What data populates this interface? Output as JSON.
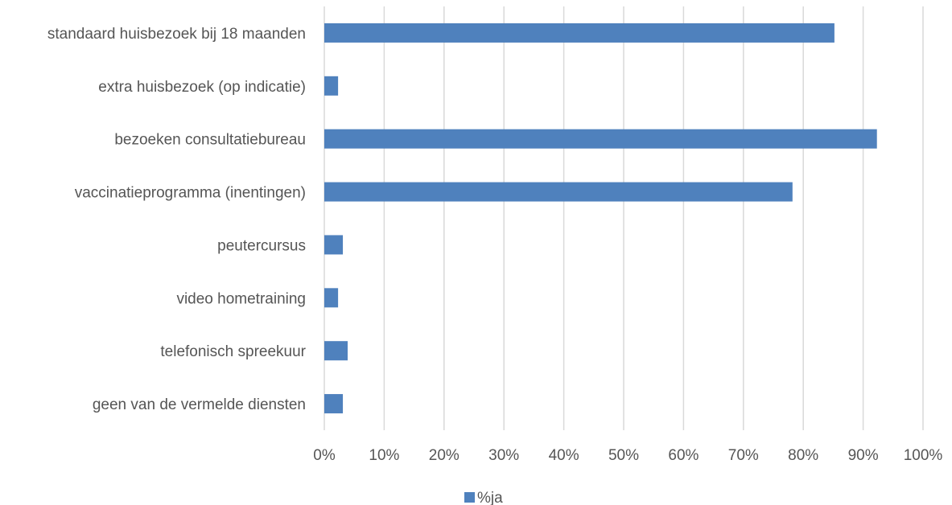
{
  "chart_data": {
    "type": "bar",
    "orientation": "horizontal",
    "title": "",
    "xlabel": "",
    "ylabel": "",
    "categories": [
      "standaard huisbezoek bij 18 maanden",
      "extra huisbezoek (op indicatie)",
      "bezoeken consultatiebureau",
      "vaccinatieprogramma (inentingen)",
      "peutercursus",
      "video hometraining",
      "telefonisch spreekuur",
      "geen van de vermelde diensten"
    ],
    "series": [
      {
        "name": "%ja",
        "color": "#4f81bd",
        "values": [
          85.2,
          2.3,
          92.3,
          78.2,
          3.1,
          2.3,
          3.9,
          3.1
        ]
      }
    ],
    "xlim": [
      0,
      100
    ],
    "ticks": [
      "0%",
      "10%",
      "20%",
      "30%",
      "40%",
      "50%",
      "60%",
      "70%",
      "80%",
      "90%",
      "100%"
    ],
    "grid": "vertical",
    "legend": "bottom-center"
  }
}
